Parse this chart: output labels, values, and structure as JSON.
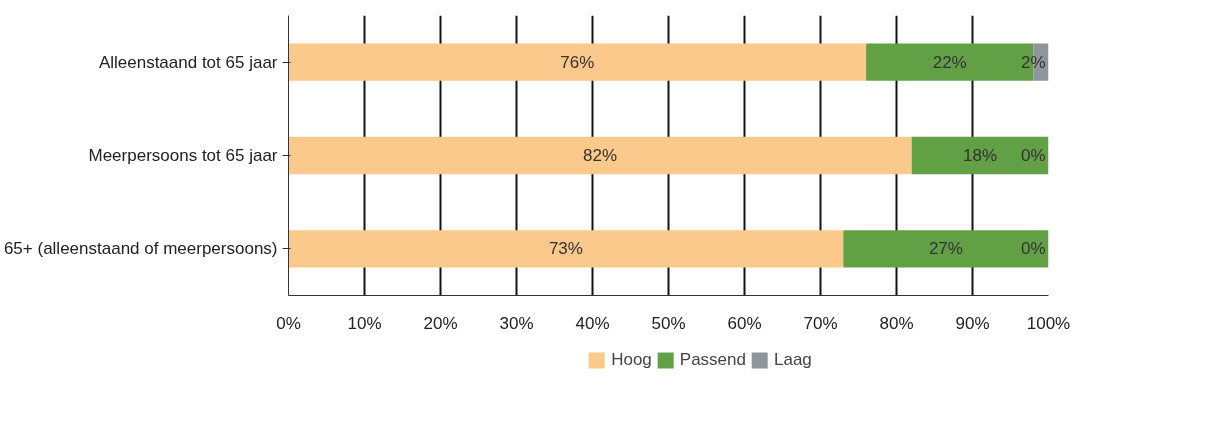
{
  "chart_data": {
    "type": "bar",
    "orientation": "horizontal",
    "stacked": true,
    "categories": [
      "Alleenstaand tot 65 jaar",
      "Meerpersoons tot 65 jaar",
      "65+ (alleenstaand of meerpersoons)"
    ],
    "series": [
      {
        "name": "Hoog",
        "color": "#fac98b",
        "values": [
          76,
          82,
          73
        ],
        "value_labels": [
          "76%",
          "82%",
          "73%"
        ]
      },
      {
        "name": "Passend",
        "color": "#62a046",
        "values": [
          22,
          18,
          27
        ],
        "value_labels": [
          "22%",
          "18%",
          "27%"
        ]
      },
      {
        "name": "Laag",
        "color": "#8e959d",
        "values": [
          2,
          0,
          0
        ],
        "value_labels": [
          "2%",
          "0%",
          "0%"
        ]
      }
    ],
    "xlim": [
      0,
      100
    ],
    "xticks": [
      {
        "value": 0,
        "label": "0%"
      },
      {
        "value": 10,
        "label": "10%"
      },
      {
        "value": 20,
        "label": "20%"
      },
      {
        "value": 30,
        "label": "30%"
      },
      {
        "value": 40,
        "label": "40%"
      },
      {
        "value": 50,
        "label": "50%"
      },
      {
        "value": 60,
        "label": "60%"
      },
      {
        "value": 70,
        "label": "70%"
      },
      {
        "value": 80,
        "label": "80%"
      },
      {
        "value": 90,
        "label": "90%"
      },
      {
        "value": 100,
        "label": "100%"
      }
    ],
    "grid": "x",
    "legend": "bottom"
  }
}
